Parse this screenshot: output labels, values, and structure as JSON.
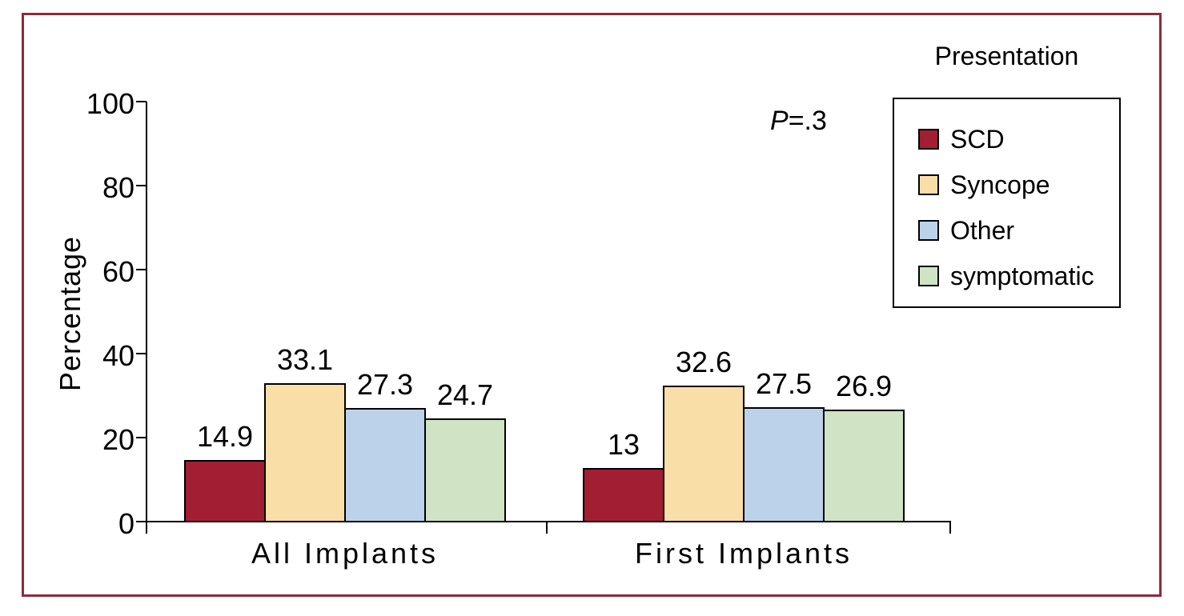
{
  "frame": {
    "border_color": "#8B2B3B",
    "background": "#FFFFFF"
  },
  "annotation": {
    "p_italic": "P",
    "p_rest": "=.3"
  },
  "chart_data": {
    "type": "bar",
    "title": "",
    "legend_title": "Presentation",
    "legend_position": "top-right",
    "annotation": "P=.3",
    "xlabel": "",
    "ylabel": "Percentage",
    "ylim": [
      0,
      100
    ],
    "yticks": [
      0,
      20,
      40,
      60,
      80,
      100
    ],
    "grid": false,
    "bar_outline_color": "#000000",
    "axis_color": "#000000",
    "categories": [
      "All Implants",
      "First Implants"
    ],
    "series": [
      {
        "name": "SCD",
        "color": "#A21E32",
        "values": [
          14.9,
          13
        ],
        "labels": [
          "14.9",
          "13"
        ]
      },
      {
        "name": "Syncope",
        "color": "#FADEA8",
        "values": [
          33.1,
          32.6
        ],
        "labels": [
          "33.1",
          "32.6"
        ]
      },
      {
        "name": "Other",
        "color": "#BCD2EB",
        "values": [
          27.3,
          27.5
        ],
        "labels": [
          "27.3",
          "27.5"
        ]
      },
      {
        "name": "symptomatic",
        "color": "#D0E3C5",
        "values": [
          24.7,
          26.9
        ],
        "labels": [
          "24.7",
          "26.9"
        ]
      }
    ]
  }
}
